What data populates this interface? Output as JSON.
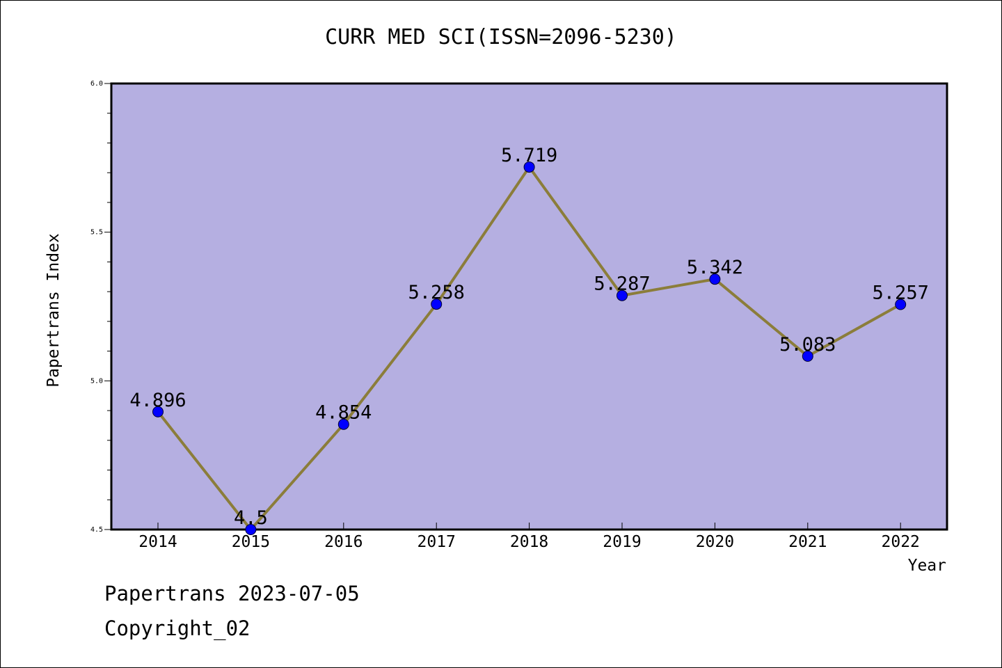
{
  "title": "CURR MED SCI(ISSN=2096-5230)",
  "footer": {
    "line1": "Papertrans 2023-07-05",
    "line2": "Copyright_02"
  },
  "colors": {
    "plot_bg": "#b5afe1",
    "line": "#8b7d3a",
    "marker": "#0000ff",
    "axis": "#000000"
  },
  "chart_data": {
    "type": "line",
    "title": "CURR MED SCI(ISSN=2096-5230)",
    "xlabel": "Year",
    "ylabel": "Papertrans Index",
    "ylim": [
      4.5,
      6.0
    ],
    "yticks": [
      "4.5",
      "5.0",
      "5.5",
      "6.0"
    ],
    "grid": false,
    "categories": [
      "2014",
      "2015",
      "2016",
      "2017",
      "2018",
      "2019",
      "2020",
      "2021",
      "2022"
    ],
    "values": [
      4.896,
      4.5,
      4.854,
      5.258,
      5.719,
      5.287,
      5.342,
      5.083,
      5.257
    ],
    "data_labels": [
      "4.896",
      "4.5",
      "4.854",
      "5.258",
      "5.719",
      "5.287",
      "5.342",
      "5.083",
      "5.257"
    ]
  }
}
